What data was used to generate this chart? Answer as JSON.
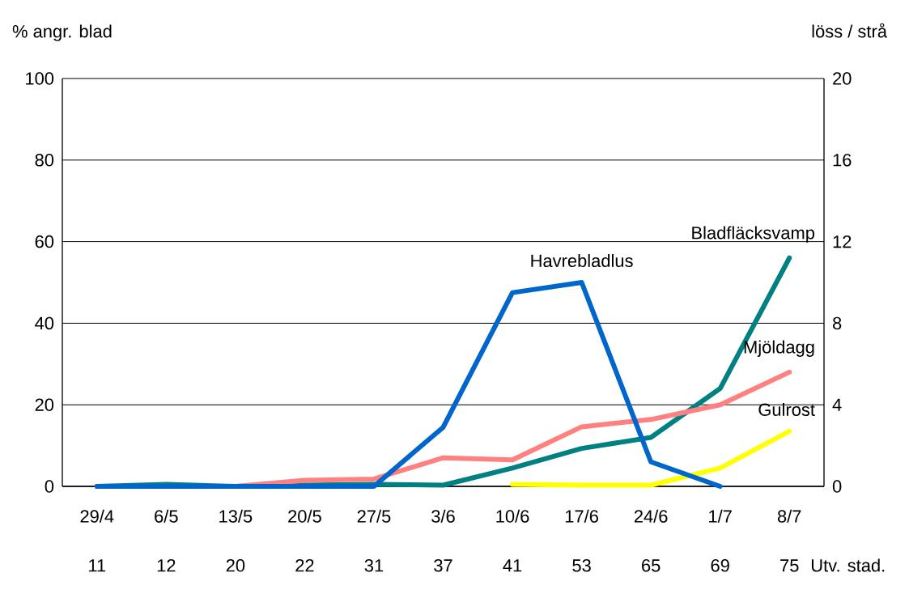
{
  "chart_data": {
    "type": "line",
    "ylabel": "% angr. blad",
    "y2label": "löss / strå",
    "categories": [
      "29/4",
      "6/5",
      "13/5",
      "20/5",
      "27/5",
      "3/6",
      "10/6",
      "17/6",
      "24/6",
      "1/7",
      "8/7"
    ],
    "series": [
      {
        "name": "Havrebladlus",
        "color": "#0066cc",
        "axis": "y2",
        "values": [
          0,
          0,
          0,
          0,
          0,
          2.9,
          9.5,
          10,
          1.2,
          0,
          null
        ]
      },
      {
        "name": "Bladfläcksvamp",
        "color": "#008080",
        "values": [
          0,
          0.5,
          0,
          0.3,
          0.5,
          0.3,
          4.5,
          9.3,
          12,
          24,
          56
        ]
      },
      {
        "name": "Mjöldagg",
        "color": "#ff8080",
        "values": [
          0,
          0,
          0,
          1.5,
          1.8,
          7,
          6.5,
          14.6,
          16.4,
          20,
          28
        ]
      },
      {
        "name": "Gulrost",
        "color": "#ffff00",
        "values": [
          null,
          null,
          null,
          null,
          null,
          null,
          0.5,
          0.3,
          0.3,
          4.5,
          13.5
        ]
      }
    ],
    "ylim": [
      0,
      100
    ],
    "yticks": [
      0,
      20,
      40,
      60,
      80,
      100
    ],
    "y2lim": [
      0,
      20
    ],
    "y2ticks": [
      0,
      4,
      8,
      12,
      16,
      20
    ],
    "grid": "y",
    "marker": "none",
    "line_style": "solid",
    "annotations": [
      "11",
      "12",
      "20",
      "22",
      "31",
      "37",
      "41",
      "53",
      "65",
      "69",
      "75",
      "Utv. stad."
    ]
  }
}
